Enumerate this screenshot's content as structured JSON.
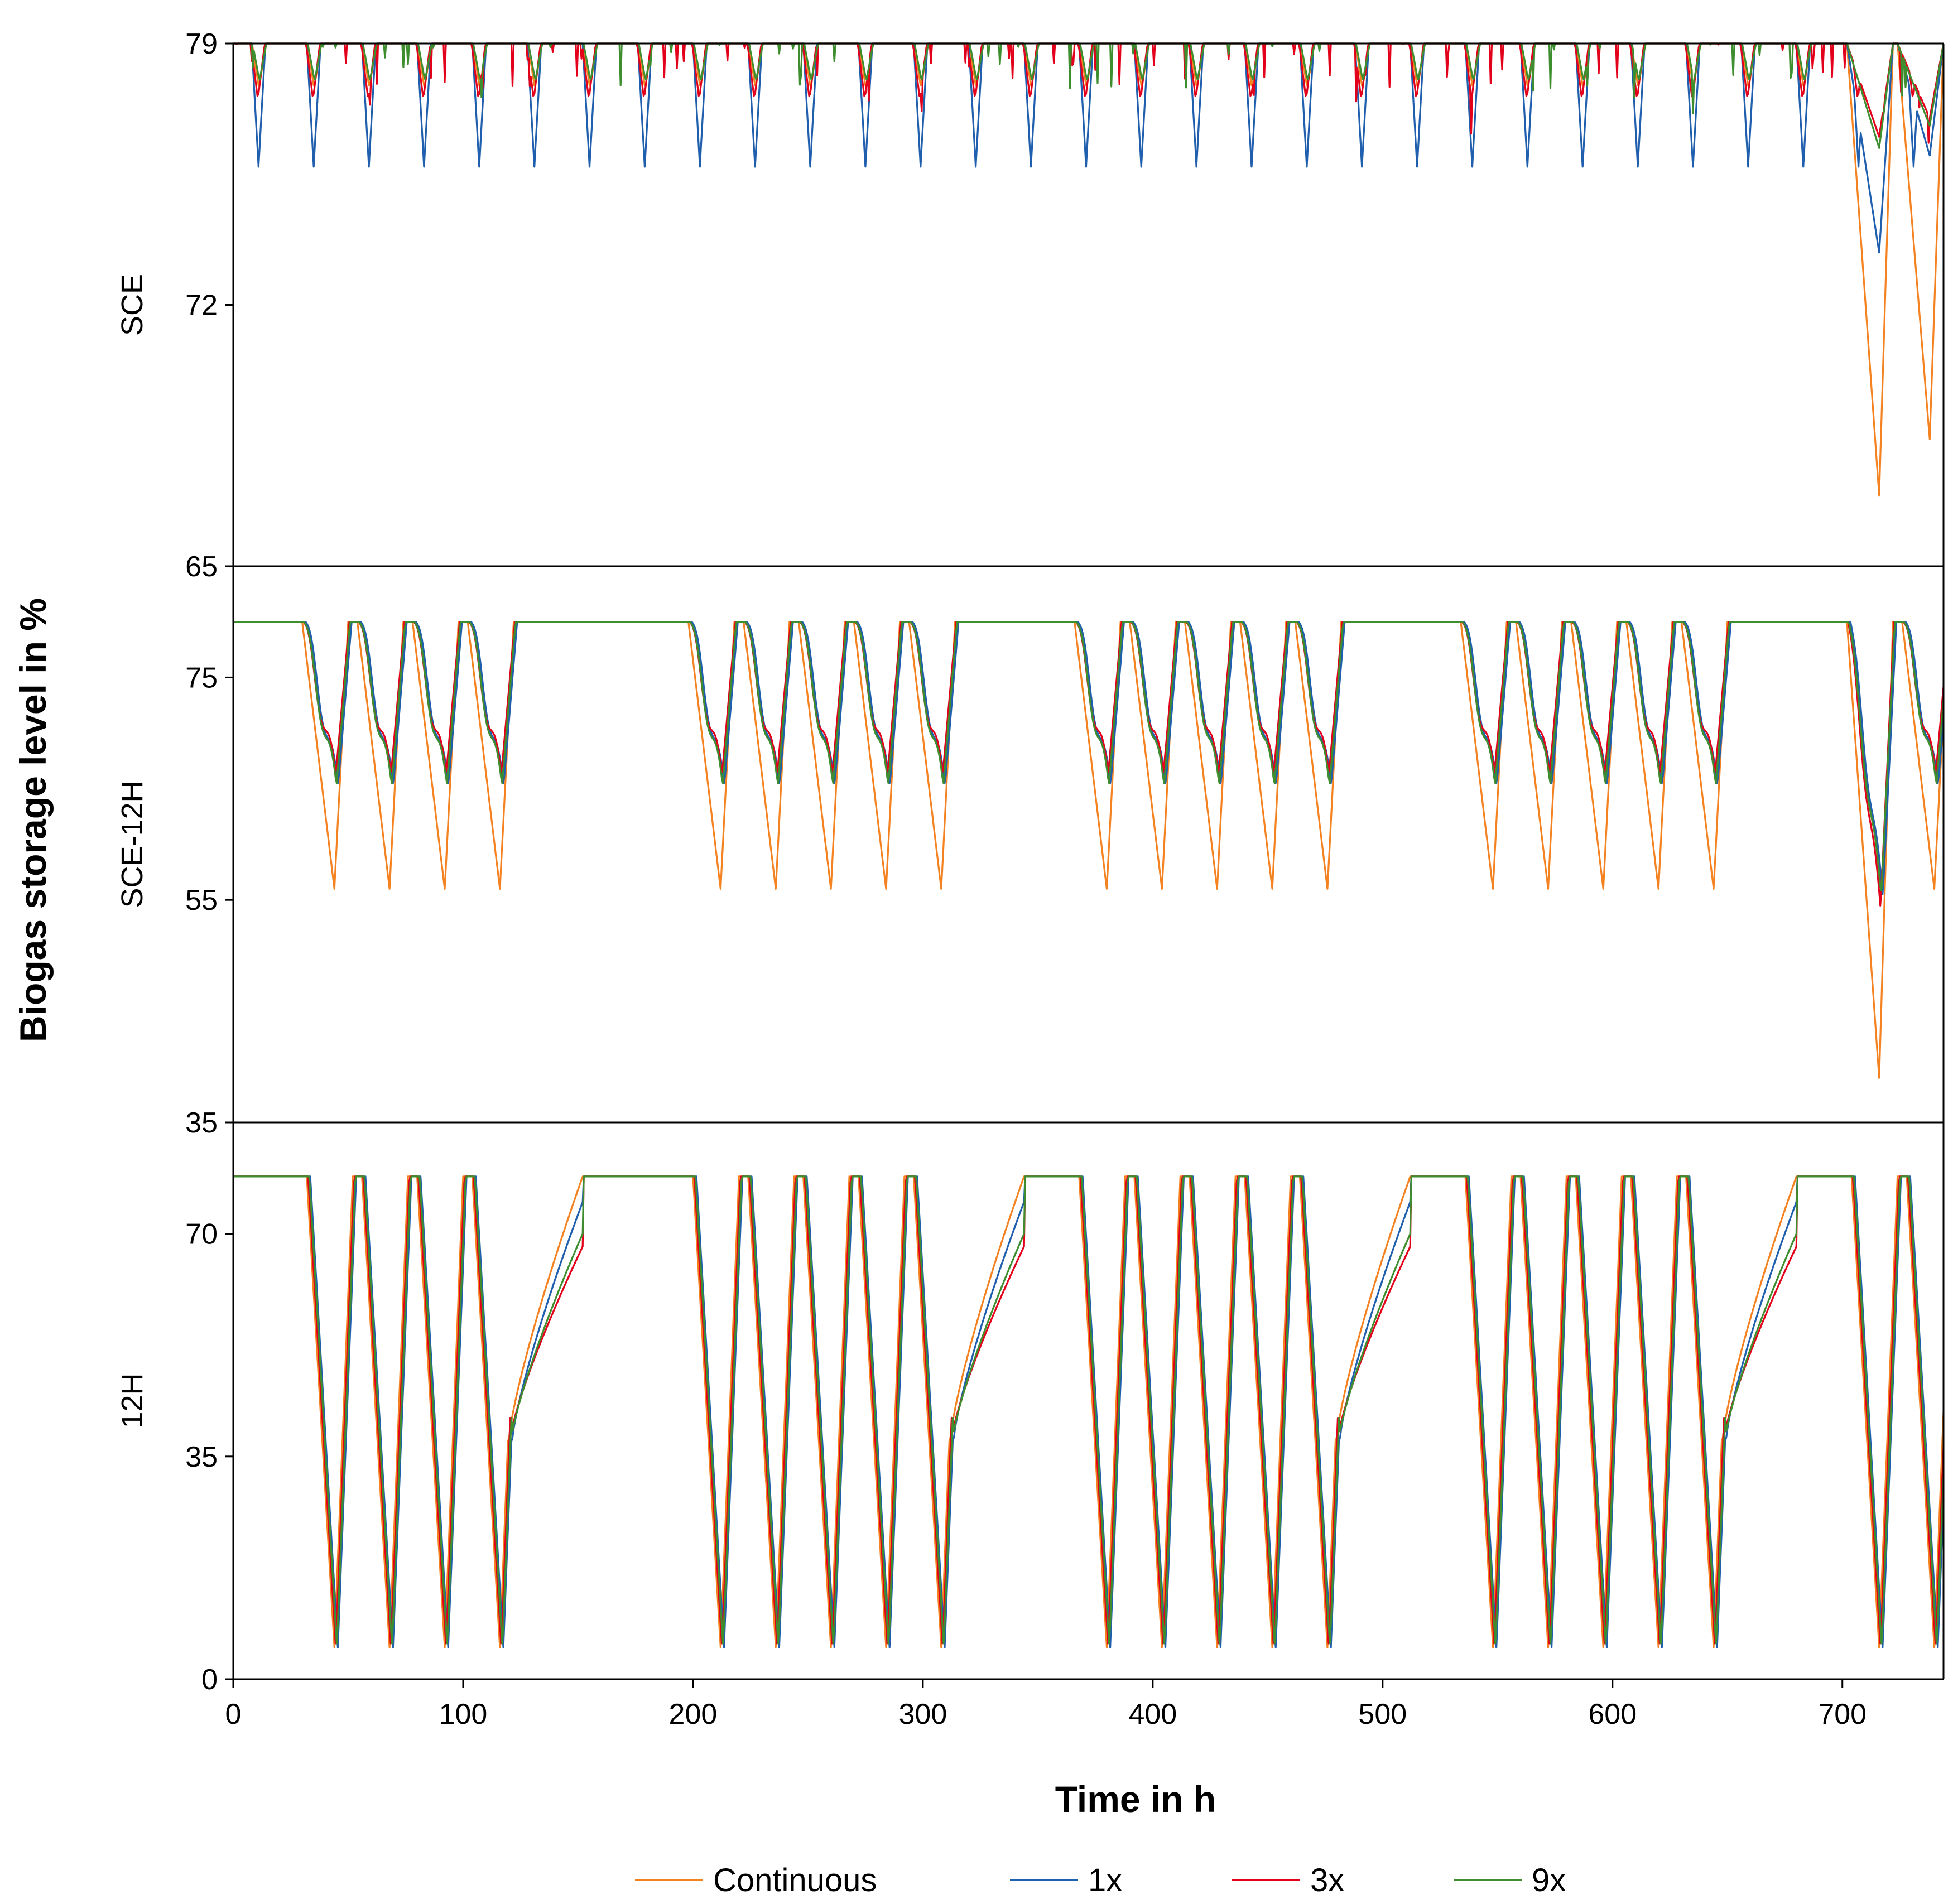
{
  "chart_data": {
    "type": "line",
    "xlabel": "Time in h",
    "ylabel": "Biogas storage level in %",
    "xlim": [
      0,
      744
    ],
    "xticks": [
      "0",
      "100",
      "200",
      "300",
      "400",
      "500",
      "600",
      "700"
    ],
    "legend_position": "bottom",
    "series": [
      {
        "name": "Continuous",
        "color": "#F58220"
      },
      {
        "name": "1x",
        "color": "#1F5FAD"
      },
      {
        "name": "3x",
        "color": "#E3001B"
      },
      {
        "name": "9x",
        "color": "#3E8E2F"
      }
    ],
    "panels": [
      {
        "label": "SCE",
        "ylim": [
          65,
          79
        ],
        "yticks": [
          "79",
          "72",
          "65"
        ],
        "top": 79,
        "baseline": 79,
        "dip_hours": [
          8,
          32,
          56,
          80,
          104,
          128,
          152,
          176,
          200,
          224,
          248,
          272,
          296,
          320,
          344,
          368,
          392,
          416,
          440,
          464,
          488,
          512,
          536,
          560,
          584,
          608,
          632,
          656,
          680,
          704,
          728
        ],
        "depth": {
          "Continuous": 1.2,
          "1x": 3.3,
          "3x": 1.5,
          "9x": 1.0
        },
        "recovery_h": 3,
        "extreme_dips": [
          {
            "hour": 716,
            "Continuous": 66.9,
            "1x": 73.4,
            "3x": 76.5,
            "9x": 76.2
          },
          {
            "hour": 738,
            "Continuous": 68.4,
            "1x": 76.0,
            "3x": 77.0,
            "9x": 76.8
          }
        ]
      },
      {
        "label": "SCE-12H",
        "ylim": [
          35,
          85
        ],
        "yticks": [
          "75",
          "55",
          "35"
        ],
        "top": 80,
        "dip_hours": [
          44,
          68,
          92,
          116,
          212,
          236,
          260,
          284,
          308,
          380,
          404,
          428,
          452,
          476,
          548,
          572,
          596,
          620,
          644,
          716,
          740
        ],
        "depth": {
          "Continuous": 24,
          "1x": 15,
          "3x": 14,
          "9x": 15
        },
        "extreme_dips": [
          {
            "hour": 716,
            "Continuous": 39,
            "1x": 55,
            "3x": 54,
            "9x": 55
          }
        ]
      },
      {
        "label": "12H",
        "ylim": [
          0,
          87.5
        ],
        "yticks": [
          "70",
          "35",
          "0"
        ],
        "top": 79,
        "min": 5,
        "dip_hours": [
          44,
          68,
          92,
          116,
          212,
          236,
          260,
          284,
          308,
          380,
          404,
          428,
          452,
          476,
          548,
          572,
          596,
          620,
          644,
          716,
          740
        ],
        "ramp_segments": [
          [
            120,
            152
          ],
          [
            312,
            344
          ],
          [
            480,
            512
          ],
          [
            648,
            680
          ]
        ]
      }
    ]
  }
}
